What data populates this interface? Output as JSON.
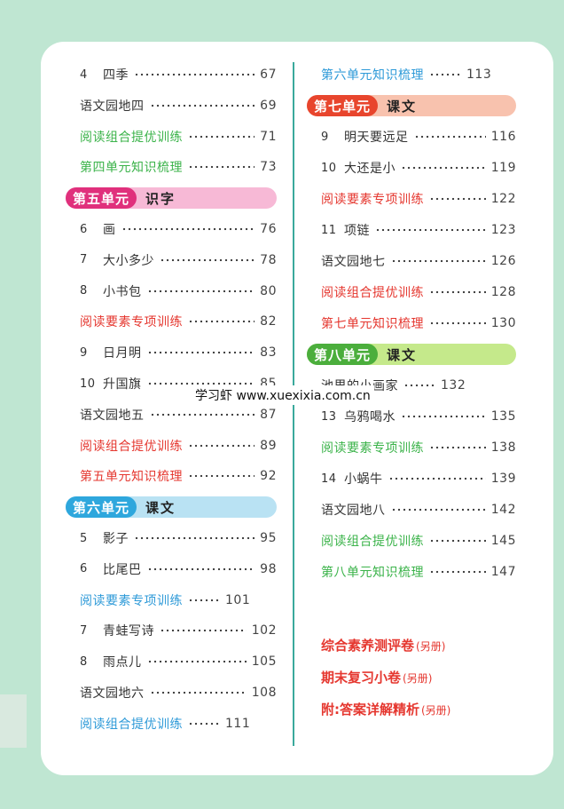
{
  "left_column": {
    "entries": [
      {
        "num": "4",
        "title": "四季",
        "page": "67",
        "style": "plain"
      },
      {
        "num": "",
        "title": "语文园地四",
        "page": "69",
        "style": "plain"
      },
      {
        "num": "",
        "title": "阅读组合提优训练",
        "page": "71",
        "style": "green"
      },
      {
        "num": "",
        "title": "第四单元知识梳理",
        "page": "73",
        "style": "green"
      },
      {
        "unit": "第五单元",
        "sub": "识字",
        "color": "pink"
      },
      {
        "num": "6",
        "title": "画",
        "page": "76",
        "style": "plain"
      },
      {
        "num": "7",
        "title": "大小多少",
        "page": "78",
        "style": "plain"
      },
      {
        "num": "8",
        "title": "小书包",
        "page": "80",
        "style": "plain"
      },
      {
        "num": "",
        "title": "阅读要素专项训练",
        "page": "82",
        "style": "red"
      },
      {
        "num": "9",
        "title": "日月明",
        "page": "83",
        "style": "plain"
      },
      {
        "num": "10",
        "title": "升国旗",
        "page": "85",
        "style": "plain"
      },
      {
        "num": "",
        "title": "语文园地五",
        "page": "87",
        "style": "plain"
      },
      {
        "num": "",
        "title": "阅读组合提优训练",
        "page": "89",
        "style": "red"
      },
      {
        "num": "",
        "title": "第五单元知识梳理",
        "page": "92",
        "style": "red"
      },
      {
        "unit": "第六单元",
        "sub": "课文",
        "color": "cyan"
      },
      {
        "num": "5",
        "title": "影子",
        "page": "95",
        "style": "plain"
      },
      {
        "num": "6",
        "title": "比尾巴",
        "page": "98",
        "style": "plain"
      },
      {
        "num": "",
        "title": "阅读要素专项训练",
        "page": "101",
        "style": "blue",
        "short": true
      },
      {
        "num": "7",
        "title": "青蛙写诗",
        "page": "102",
        "style": "plain"
      },
      {
        "num": "8",
        "title": "雨点儿",
        "page": "105",
        "style": "plain"
      },
      {
        "num": "",
        "title": "语文园地六",
        "page": "108",
        "style": "plain"
      },
      {
        "num": "",
        "title": "阅读组合提优训练",
        "page": "111",
        "style": "blue",
        "short": true
      }
    ]
  },
  "right_column": {
    "entries": [
      {
        "num": "",
        "title": "第六单元知识梳理",
        "page": "113",
        "style": "blue",
        "short": true
      },
      {
        "unit": "第七单元",
        "sub": "课文",
        "color": "orange"
      },
      {
        "num": "9",
        "title": "明天要远足",
        "page": "116",
        "style": "plain"
      },
      {
        "num": "10",
        "title": "大还是小",
        "page": "119",
        "style": "plain"
      },
      {
        "num": "",
        "title": "阅读要素专项训练",
        "page": "122",
        "style": "red"
      },
      {
        "num": "11",
        "title": "项链",
        "page": "123",
        "style": "plain"
      },
      {
        "num": "",
        "title": "语文园地七",
        "page": "126",
        "style": "plain"
      },
      {
        "num": "",
        "title": "阅读组合提优训练",
        "page": "128",
        "style": "red"
      },
      {
        "num": "",
        "title": "第七单元知识梳理",
        "page": "130",
        "style": "red"
      },
      {
        "unit": "第八单元",
        "sub": "课文",
        "color": "lime"
      },
      {
        "num": "",
        "title": "池里的小画家",
        "page": "132",
        "style": "plain",
        "short": true
      },
      {
        "num": "13",
        "title": "乌鸦喝水",
        "page": "135",
        "style": "plain"
      },
      {
        "num": "",
        "title": "阅读要素专项训练",
        "page": "138",
        "style": "green"
      },
      {
        "num": "14",
        "title": "小蜗牛",
        "page": "139",
        "style": "plain"
      },
      {
        "num": "",
        "title": "语文园地八",
        "page": "142",
        "style": "plain"
      },
      {
        "num": "",
        "title": "阅读组合提优训练",
        "page": "145",
        "style": "green"
      },
      {
        "num": "",
        "title": "第八单元知识梳理",
        "page": "147",
        "style": "green"
      }
    ]
  },
  "extras": [
    {
      "title": "综合素养测评卷",
      "note": "(另册)"
    },
    {
      "title": "期末复习小卷",
      "note": "(另册)"
    },
    {
      "title": "附:答案详解精析",
      "note": "(另册)"
    }
  ],
  "watermark": "学习虾 www.xuexixia.com.cn",
  "colors": {
    "background": "#bfe6d2",
    "green": "#3bb34a",
    "red": "#e5372f",
    "blue": "#2e9ad8",
    "divider": "#3aa99c"
  }
}
